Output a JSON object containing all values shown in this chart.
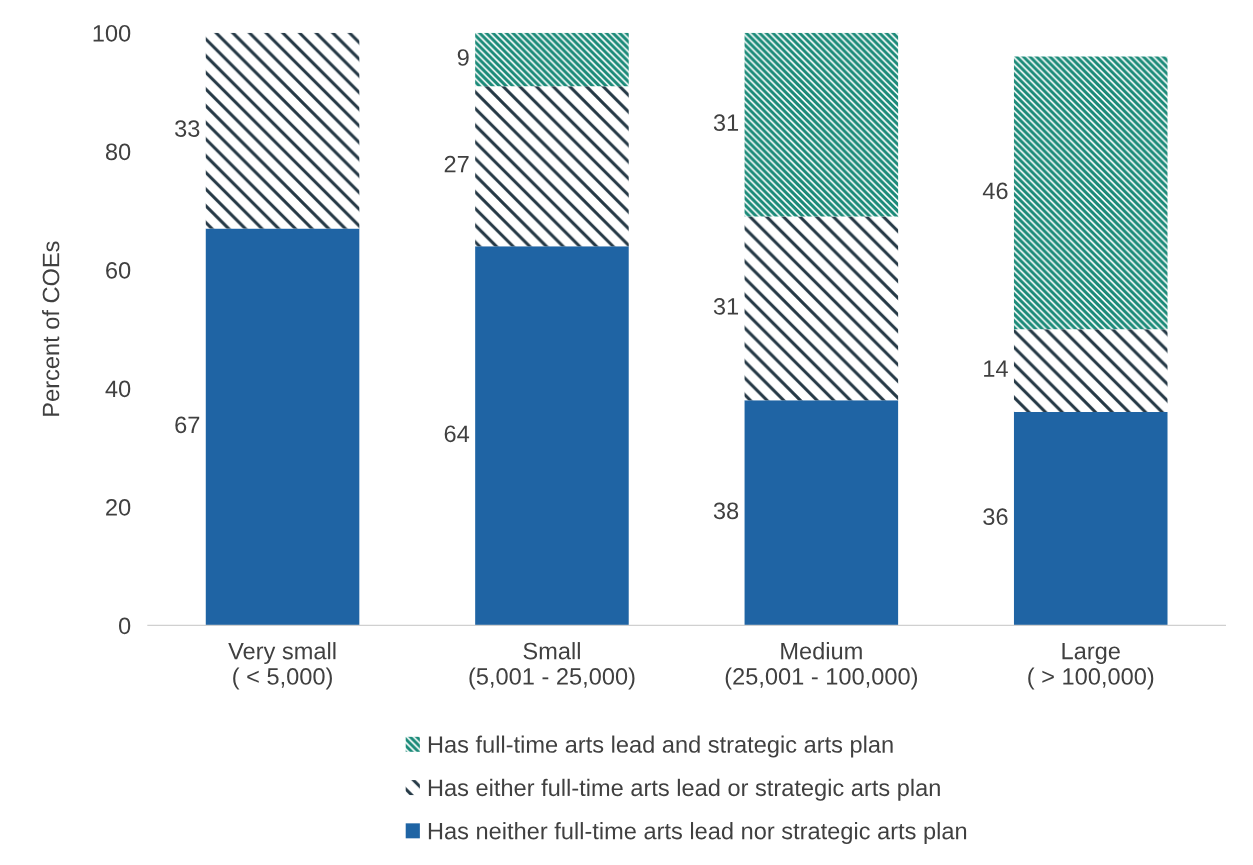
{
  "chart_data": {
    "type": "bar",
    "stacked": true,
    "ylabel": "Percent of COEs",
    "categories": [
      "Very small\n( < 5,000)",
      "Small\n(5,001 - 25,000)",
      "Medium\n(25,001 - 100,000)",
      "Large\n( > 100,000)"
    ],
    "series": [
      {
        "name": "Has neither full-time arts lead nor strategic arts plan",
        "color": "#1f64a4",
        "values": [
          67,
          64,
          38,
          36
        ],
        "value_labels": [
          "67",
          "64",
          "38",
          "36"
        ]
      },
      {
        "name": "Has either full-time arts lead or strategic arts plan",
        "color": "#243845",
        "values": [
          33,
          27,
          31,
          14
        ],
        "value_labels": [
          "33",
          "27",
          "31",
          "14"
        ]
      },
      {
        "name": "Has full-time arts lead and strategic arts plan",
        "color": "#1a8a78",
        "values": [
          0,
          9,
          31,
          46
        ],
        "value_labels": [
          null,
          "9",
          "31",
          "46"
        ]
      }
    ],
    "ylim": [
      0,
      100
    ],
    "yticks": [
      0,
      20,
      40,
      60,
      80,
      100
    ],
    "grid": false,
    "legend": "bottom"
  }
}
